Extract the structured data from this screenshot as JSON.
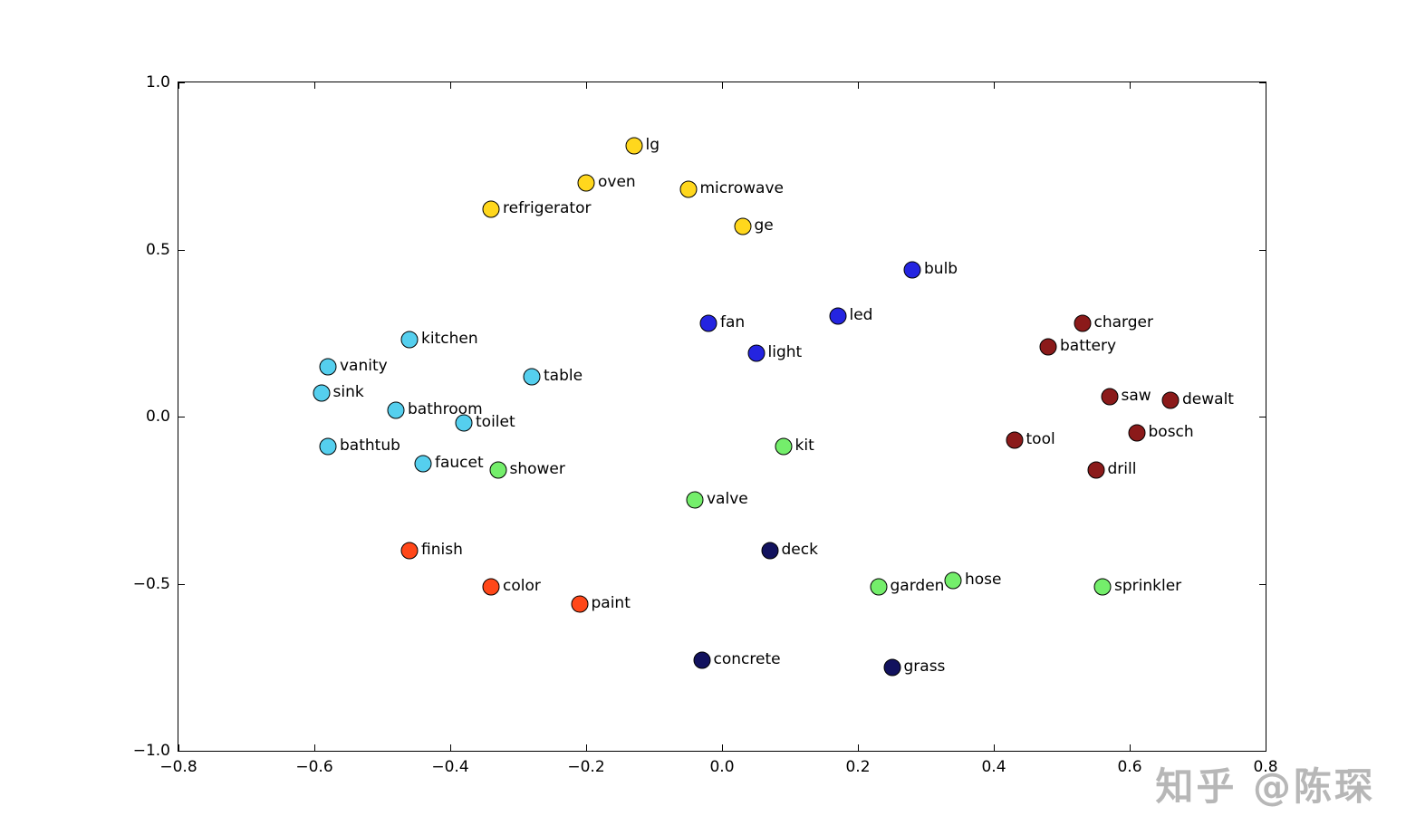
{
  "watermark": {
    "text": "知乎 @陈琛"
  },
  "chart_data": {
    "type": "scatter",
    "title": "",
    "xlabel": "",
    "ylabel": "",
    "xlim": [
      -0.8,
      0.8
    ],
    "ylim": [
      -1.0,
      1.0
    ],
    "grid": false,
    "legend": "none",
    "x_ticks": [
      {
        "value": -0.8,
        "label": "−0.8"
      },
      {
        "value": -0.6,
        "label": "−0.6"
      },
      {
        "value": -0.4,
        "label": "−0.4"
      },
      {
        "value": -0.2,
        "label": "−0.2"
      },
      {
        "value": 0.0,
        "label": "0.0"
      },
      {
        "value": 0.2,
        "label": "0.2"
      },
      {
        "value": 0.4,
        "label": "0.4"
      },
      {
        "value": 0.6,
        "label": "0.6"
      },
      {
        "value": 0.8,
        "label": "0.8"
      }
    ],
    "y_ticks": [
      {
        "value": -1.0,
        "label": "−1.0"
      },
      {
        "value": -0.5,
        "label": "−0.5"
      },
      {
        "value": 0.0,
        "label": "0.0"
      },
      {
        "value": 0.5,
        "label": "0.5"
      },
      {
        "value": 1.0,
        "label": "1.0"
      }
    ],
    "group_colors": {
      "appliances_yellow": "#ffd71d",
      "lighting_blue": "#2424e0",
      "kitchen_bath_cyan": "#55cfee",
      "tools_darkred": "#8b1a1a",
      "garden_green": "#74ee6b",
      "paint_orangered": "#ff4719",
      "surfaces_navy": "#12125e"
    },
    "points": [
      {
        "label": "lg",
        "x": -0.13,
        "y": 0.81,
        "group": "appliances_yellow"
      },
      {
        "label": "oven",
        "x": -0.2,
        "y": 0.7,
        "group": "appliances_yellow"
      },
      {
        "label": "microwave",
        "x": -0.05,
        "y": 0.68,
        "group": "appliances_yellow"
      },
      {
        "label": "refrigerator",
        "x": -0.34,
        "y": 0.62,
        "group": "appliances_yellow"
      },
      {
        "label": "ge",
        "x": 0.03,
        "y": 0.57,
        "group": "appliances_yellow"
      },
      {
        "label": "bulb",
        "x": 0.28,
        "y": 0.44,
        "group": "lighting_blue"
      },
      {
        "label": "led",
        "x": 0.17,
        "y": 0.3,
        "group": "lighting_blue"
      },
      {
        "label": "fan",
        "x": -0.02,
        "y": 0.28,
        "group": "lighting_blue"
      },
      {
        "label": "light",
        "x": 0.05,
        "y": 0.19,
        "group": "lighting_blue"
      },
      {
        "label": "kitchen",
        "x": -0.46,
        "y": 0.23,
        "group": "kitchen_bath_cyan"
      },
      {
        "label": "vanity",
        "x": -0.58,
        "y": 0.15,
        "group": "kitchen_bath_cyan"
      },
      {
        "label": "sink",
        "x": -0.59,
        "y": 0.07,
        "group": "kitchen_bath_cyan"
      },
      {
        "label": "table",
        "x": -0.28,
        "y": 0.12,
        "group": "kitchen_bath_cyan"
      },
      {
        "label": "bathroom",
        "x": -0.48,
        "y": 0.02,
        "group": "kitchen_bath_cyan"
      },
      {
        "label": "toilet",
        "x": -0.38,
        "y": -0.02,
        "group": "kitchen_bath_cyan"
      },
      {
        "label": "bathtub",
        "x": -0.58,
        "y": -0.09,
        "group": "kitchen_bath_cyan"
      },
      {
        "label": "faucet",
        "x": -0.44,
        "y": -0.14,
        "group": "kitchen_bath_cyan"
      },
      {
        "label": "charger",
        "x": 0.53,
        "y": 0.28,
        "group": "tools_darkred"
      },
      {
        "label": "battery",
        "x": 0.48,
        "y": 0.21,
        "group": "tools_darkred"
      },
      {
        "label": "saw",
        "x": 0.57,
        "y": 0.06,
        "group": "tools_darkred"
      },
      {
        "label": "dewalt",
        "x": 0.66,
        "y": 0.05,
        "group": "tools_darkred"
      },
      {
        "label": "tool",
        "x": 0.43,
        "y": -0.07,
        "group": "tools_darkred"
      },
      {
        "label": "bosch",
        "x": 0.61,
        "y": -0.05,
        "group": "tools_darkred"
      },
      {
        "label": "drill",
        "x": 0.55,
        "y": -0.16,
        "group": "tools_darkred"
      },
      {
        "label": "shower",
        "x": -0.33,
        "y": -0.16,
        "group": "garden_green"
      },
      {
        "label": "kit",
        "x": 0.09,
        "y": -0.09,
        "group": "garden_green"
      },
      {
        "label": "valve",
        "x": -0.04,
        "y": -0.25,
        "group": "garden_green"
      },
      {
        "label": "garden",
        "x": 0.23,
        "y": -0.51,
        "group": "garden_green"
      },
      {
        "label": "hose",
        "x": 0.34,
        "y": -0.49,
        "group": "garden_green"
      },
      {
        "label": "sprinkler",
        "x": 0.56,
        "y": -0.51,
        "group": "garden_green"
      },
      {
        "label": "finish",
        "x": -0.46,
        "y": -0.4,
        "group": "paint_orangered"
      },
      {
        "label": "color",
        "x": -0.34,
        "y": -0.51,
        "group": "paint_orangered"
      },
      {
        "label": "paint",
        "x": -0.21,
        "y": -0.56,
        "group": "paint_orangered"
      },
      {
        "label": "deck",
        "x": 0.07,
        "y": -0.4,
        "group": "surfaces_navy"
      },
      {
        "label": "concrete",
        "x": -0.03,
        "y": -0.73,
        "group": "surfaces_navy"
      },
      {
        "label": "grass",
        "x": 0.25,
        "y": -0.75,
        "group": "surfaces_navy"
      }
    ]
  }
}
